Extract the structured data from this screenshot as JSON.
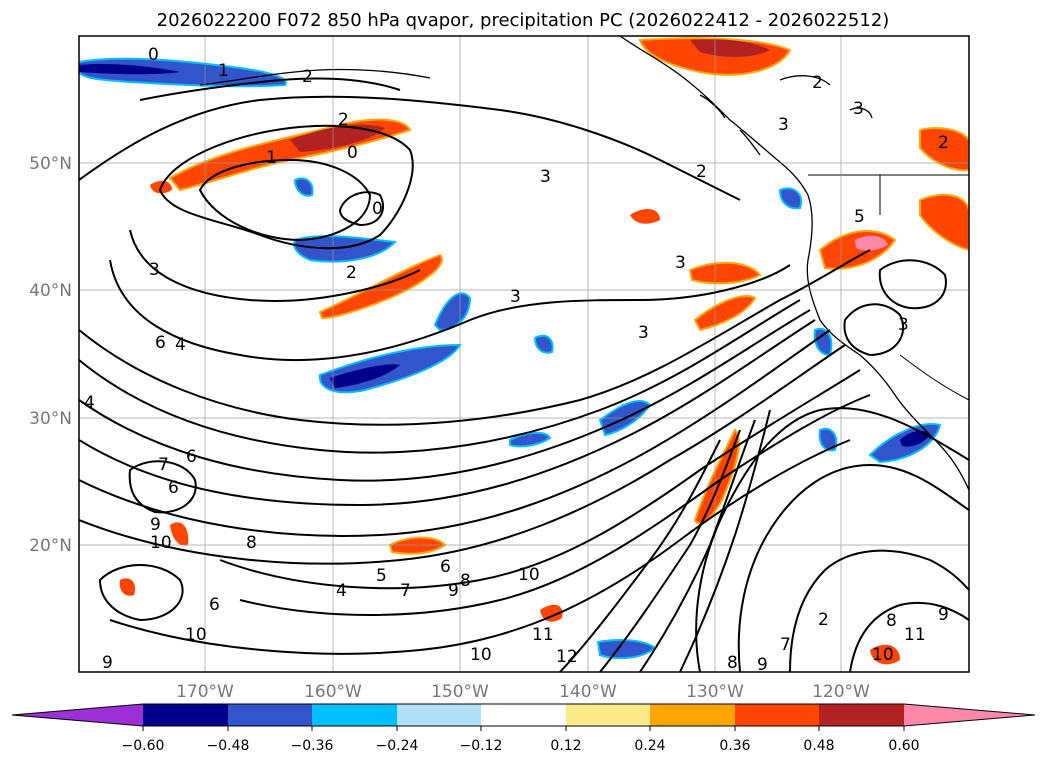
{
  "title": "2026022200 F072 850 hPa qvapor, precipitation PC (2026022412 - 2026022512)",
  "map": {
    "lat_range": [
      10,
      60
    ],
    "lon_range": [
      -180,
      -110
    ],
    "lat_ticks": [
      {
        "value": 50,
        "label": "50°N"
      },
      {
        "value": 40,
        "label": "40°N"
      },
      {
        "value": 30,
        "label": "30°N"
      },
      {
        "value": 20,
        "label": "20°N"
      }
    ],
    "lon_ticks": [
      {
        "value": -170,
        "label": "170°W"
      },
      {
        "value": -160,
        "label": "160°W"
      },
      {
        "value": -150,
        "label": "150°W"
      },
      {
        "value": -140,
        "label": "140°W"
      },
      {
        "value": -130,
        "label": "130°W"
      },
      {
        "value": -120,
        "label": "120°W"
      }
    ],
    "contour_labels": [
      "0",
      "1",
      "2",
      "2",
      "0",
      "1",
      "0",
      "2",
      "3",
      "3",
      "2",
      "3",
      "3",
      "3",
      "5",
      "6",
      "4",
      "4",
      "6",
      "7",
      "6",
      "9",
      "10",
      "8",
      "7",
      "5",
      "4",
      "6",
      "9",
      "8",
      "10",
      "11",
      "10",
      "12",
      "8",
      "9",
      "6",
      "7",
      "10",
      "9",
      "8",
      "9",
      "11",
      "10",
      "2",
      "2",
      "3",
      "3",
      "2",
      "3"
    ]
  },
  "colorbar": {
    "ticks": [
      "−0.60",
      "−0.48",
      "−0.36",
      "−0.24",
      "−0.12",
      "0.12",
      "0.24",
      "0.36",
      "0.48",
      "0.60"
    ],
    "colors": [
      "#9b30d6",
      "#00008b",
      "#3355cc",
      "#00bfff",
      "#b0e0f8",
      "#ffffff",
      "#fce989",
      "#ffa500",
      "#ff4500",
      "#b22222",
      "#ff88aa"
    ]
  },
  "chart_data": {
    "type": "map",
    "variable": "850 hPa qvapor, precipitation PC",
    "colorbar_levels": [
      -0.6,
      -0.48,
      -0.36,
      -0.24,
      -0.12,
      0.12,
      0.24,
      0.36,
      0.48,
      0.6
    ],
    "contour_values_visible": [
      0,
      1,
      2,
      3,
      4,
      5,
      6,
      7,
      8,
      9,
      10,
      11,
      12
    ]
  }
}
